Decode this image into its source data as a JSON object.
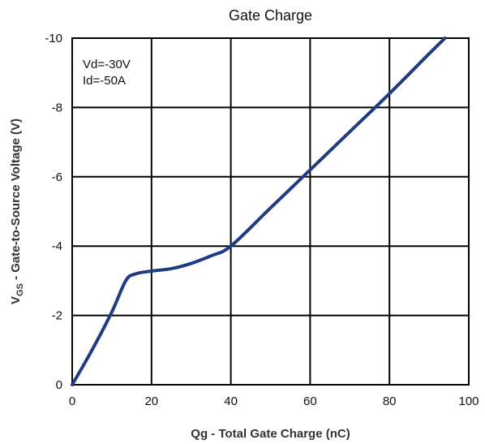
{
  "chart_data": {
    "type": "line",
    "title": "Gate Charge",
    "xlabel": "Qg - Total Gate Charge (nC)",
    "ylabel_main": "V",
    "ylabel_sub": "GS",
    "ylabel_rest": " - Gate-to-Source Voltage (V)",
    "xlim": [
      0,
      100
    ],
    "ylim": [
      0,
      -10
    ],
    "x_ticks": [
      0,
      20,
      40,
      60,
      80,
      100
    ],
    "y_ticks": [
      0,
      -2,
      -4,
      -6,
      -8,
      -10
    ],
    "x_tick_labels": [
      "0",
      "20",
      "40",
      "60",
      "80",
      "100"
    ],
    "y_tick_labels": [
      "0",
      "-2",
      "-4",
      "-6",
      "-8",
      "-10"
    ],
    "grid": true,
    "annotations": [
      "Vd=-30V",
      "Id=-50A"
    ],
    "series": [
      {
        "color": "#1f3b82",
        "x": [
          0,
          5,
          10,
          13.5,
          16,
          20,
          25,
          30,
          35,
          40,
          50,
          60,
          70,
          80,
          90,
          94
        ],
        "y": [
          0,
          -1.0,
          -2.1,
          -3.0,
          -3.2,
          -3.28,
          -3.35,
          -3.5,
          -3.72,
          -4.0,
          -5.1,
          -6.2,
          -7.3,
          -8.4,
          -9.55,
          -10.0
        ]
      }
    ]
  }
}
